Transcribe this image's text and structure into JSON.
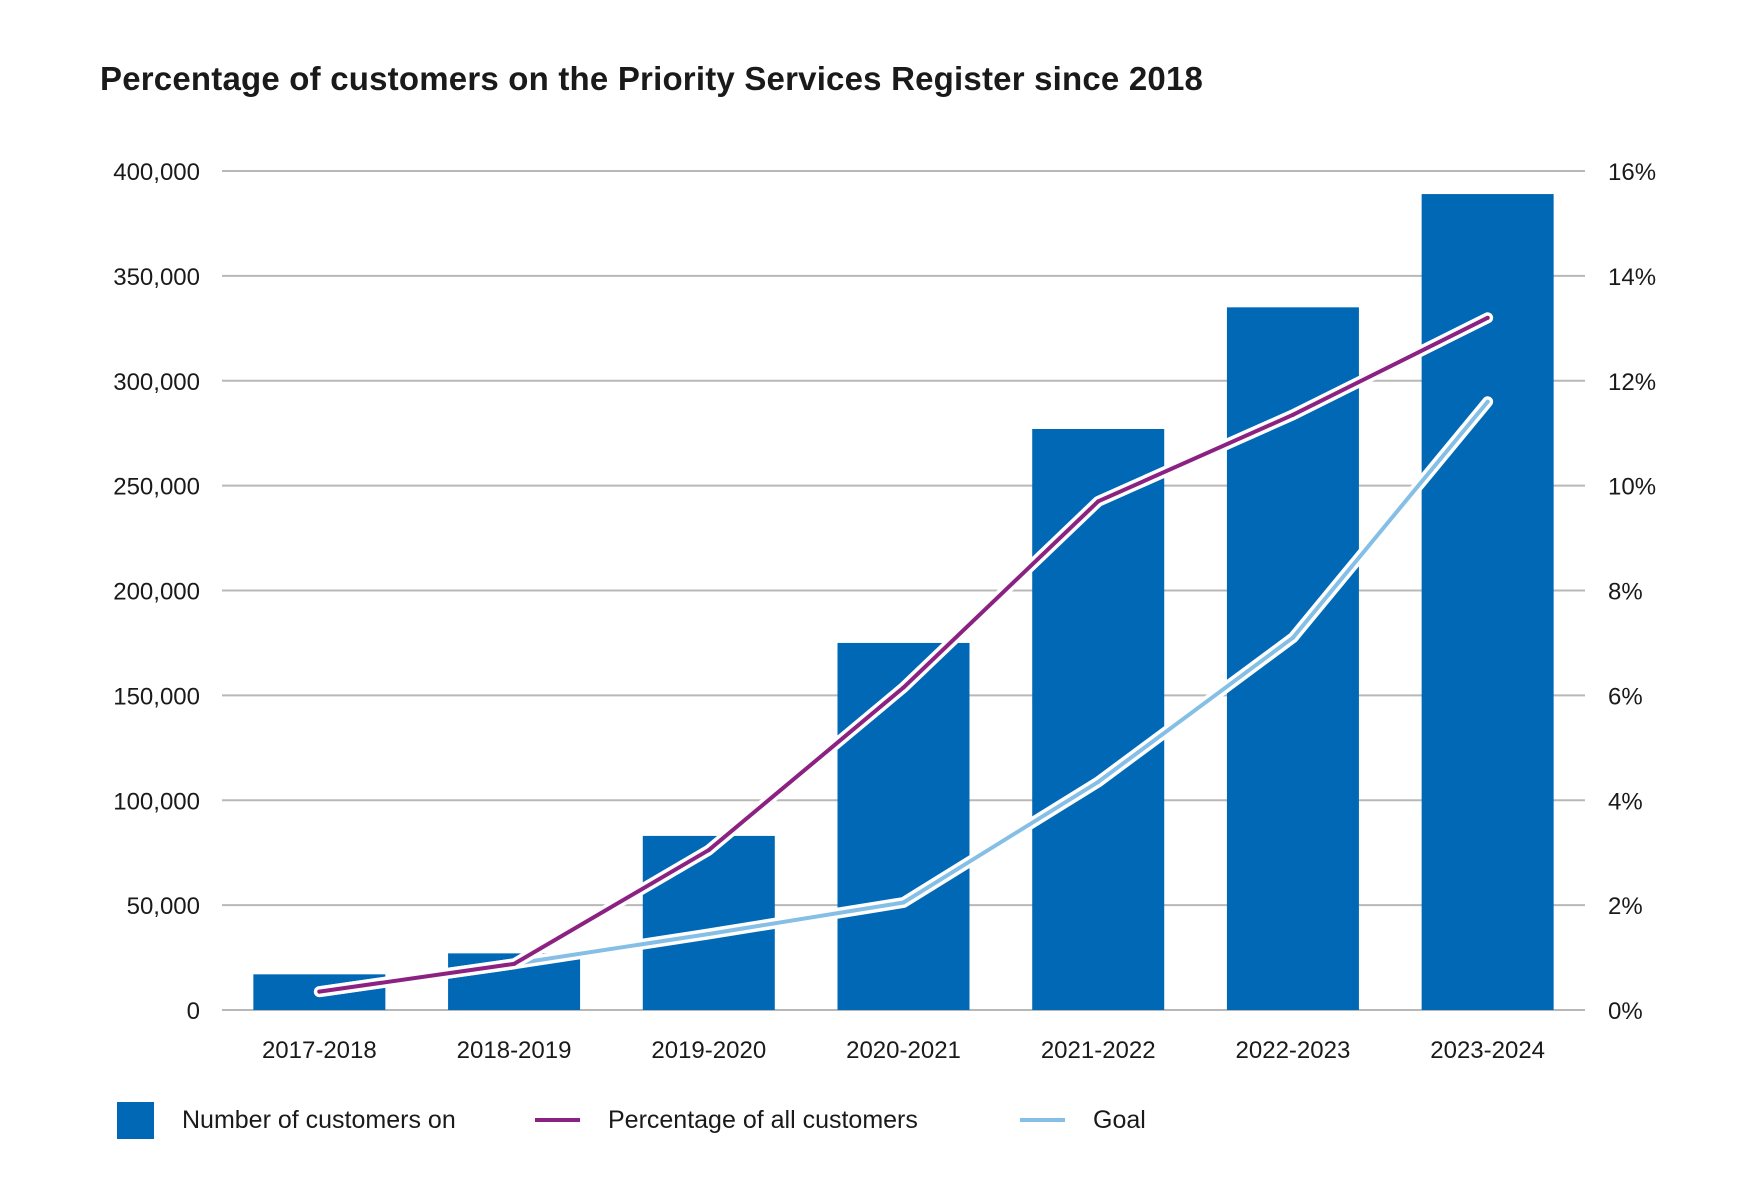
{
  "chart_data": {
    "type": "bar",
    "title": "Percentage of customers on the Priority Services Register since 2018",
    "categories": [
      "2017-2018",
      "2018-2019",
      "2019-2020",
      "2020-2021",
      "2021-2022",
      "2022-2023",
      "2023-2024"
    ],
    "series": [
      {
        "name": "Number of customers on",
        "type": "bar",
        "axis": "left",
        "color": "#0068b5",
        "values": [
          17000,
          27000,
          83000,
          175000,
          277000,
          335000,
          389000
        ]
      },
      {
        "name": "Percentage of all customers",
        "type": "line",
        "axis": "right",
        "color": "#8b2181",
        "values": [
          0.35,
          0.88,
          3.05,
          6.15,
          9.7,
          11.35,
          13.2
        ]
      },
      {
        "name": "Goal",
        "type": "line",
        "axis": "right",
        "color": "#86bfe6",
        "values": [
          0.35,
          0.88,
          1.45,
          2.05,
          4.35,
          7.1,
          11.6
        ]
      }
    ],
    "y_left": {
      "min": 0,
      "max": 400000,
      "ticks": [
        "0",
        "50,000",
        "100,000",
        "150,000",
        "200,000",
        "250,000",
        "300,000",
        "350,000",
        "400,000"
      ]
    },
    "y_right": {
      "min": 0,
      "max": 16,
      "ticks": [
        "0%",
        "2%",
        "4%",
        "6%",
        "8%",
        "10%",
        "12%",
        "14%",
        "16%"
      ]
    },
    "grid": true,
    "legend_position": "bottom"
  }
}
